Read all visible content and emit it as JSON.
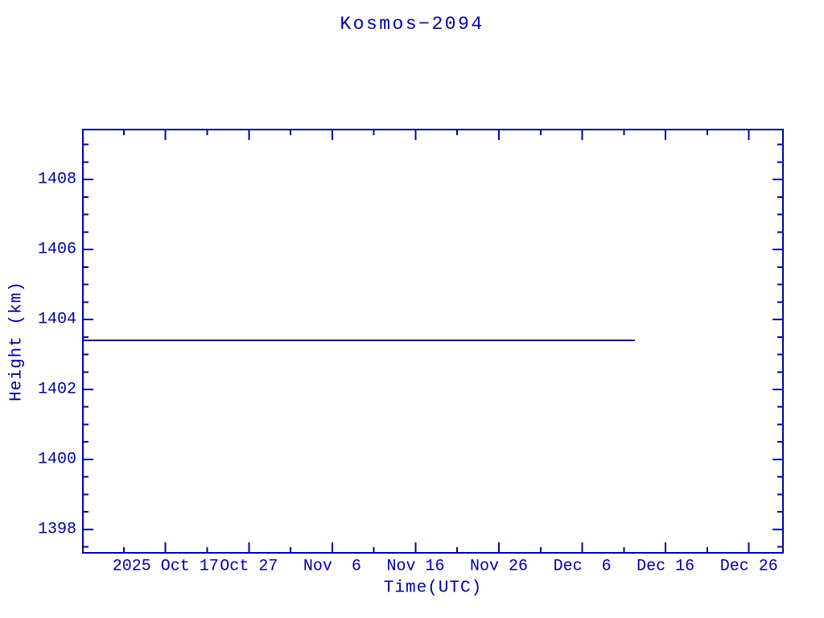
{
  "chart_data": {
    "type": "line",
    "title": "Kosmos−2094",
    "xlabel": "Time(UTC)",
    "ylabel": "Height (km)",
    "background_color": "#ffffff",
    "axis_color": "#0000a0",
    "grid": false,
    "legend": false,
    "x_unit": "days relative to 2025 Oct 17 00:00 UTC",
    "xlim": [
      -9.92,
      74.08
    ],
    "ylim": [
      1397.33,
      1409.43
    ],
    "x_major_ticks": [
      {
        "value": 0,
        "label": "2025 Oct 17"
      },
      {
        "value": 10,
        "label": "Oct 27"
      },
      {
        "value": 20,
        "label": "Nov  6"
      },
      {
        "value": 30,
        "label": "Nov 16"
      },
      {
        "value": 40,
        "label": "Nov 26"
      },
      {
        "value": 50,
        "label": "Dec  6"
      },
      {
        "value": 60,
        "label": "Dec 16"
      },
      {
        "value": 70,
        "label": "Dec 26"
      }
    ],
    "x_minor_step": 5,
    "y_major_ticks": [
      {
        "value": 1398,
        "label": "1398"
      },
      {
        "value": 1400,
        "label": "1400"
      },
      {
        "value": 1402,
        "label": "1402"
      },
      {
        "value": 1404,
        "label": "1404"
      },
      {
        "value": 1406,
        "label": "1406"
      },
      {
        "value": 1408,
        "label": "1408"
      }
    ],
    "y_minor_step": 0.5,
    "series": [
      {
        "name": "height-km",
        "color": "#000080",
        "points": [
          {
            "x": -9.92,
            "date_est": "2025 Oct 07",
            "y": 1403.4
          },
          {
            "x": 56.3,
            "date_est": "2025 Dec 12",
            "y": 1403.4
          }
        ]
      }
    ]
  }
}
